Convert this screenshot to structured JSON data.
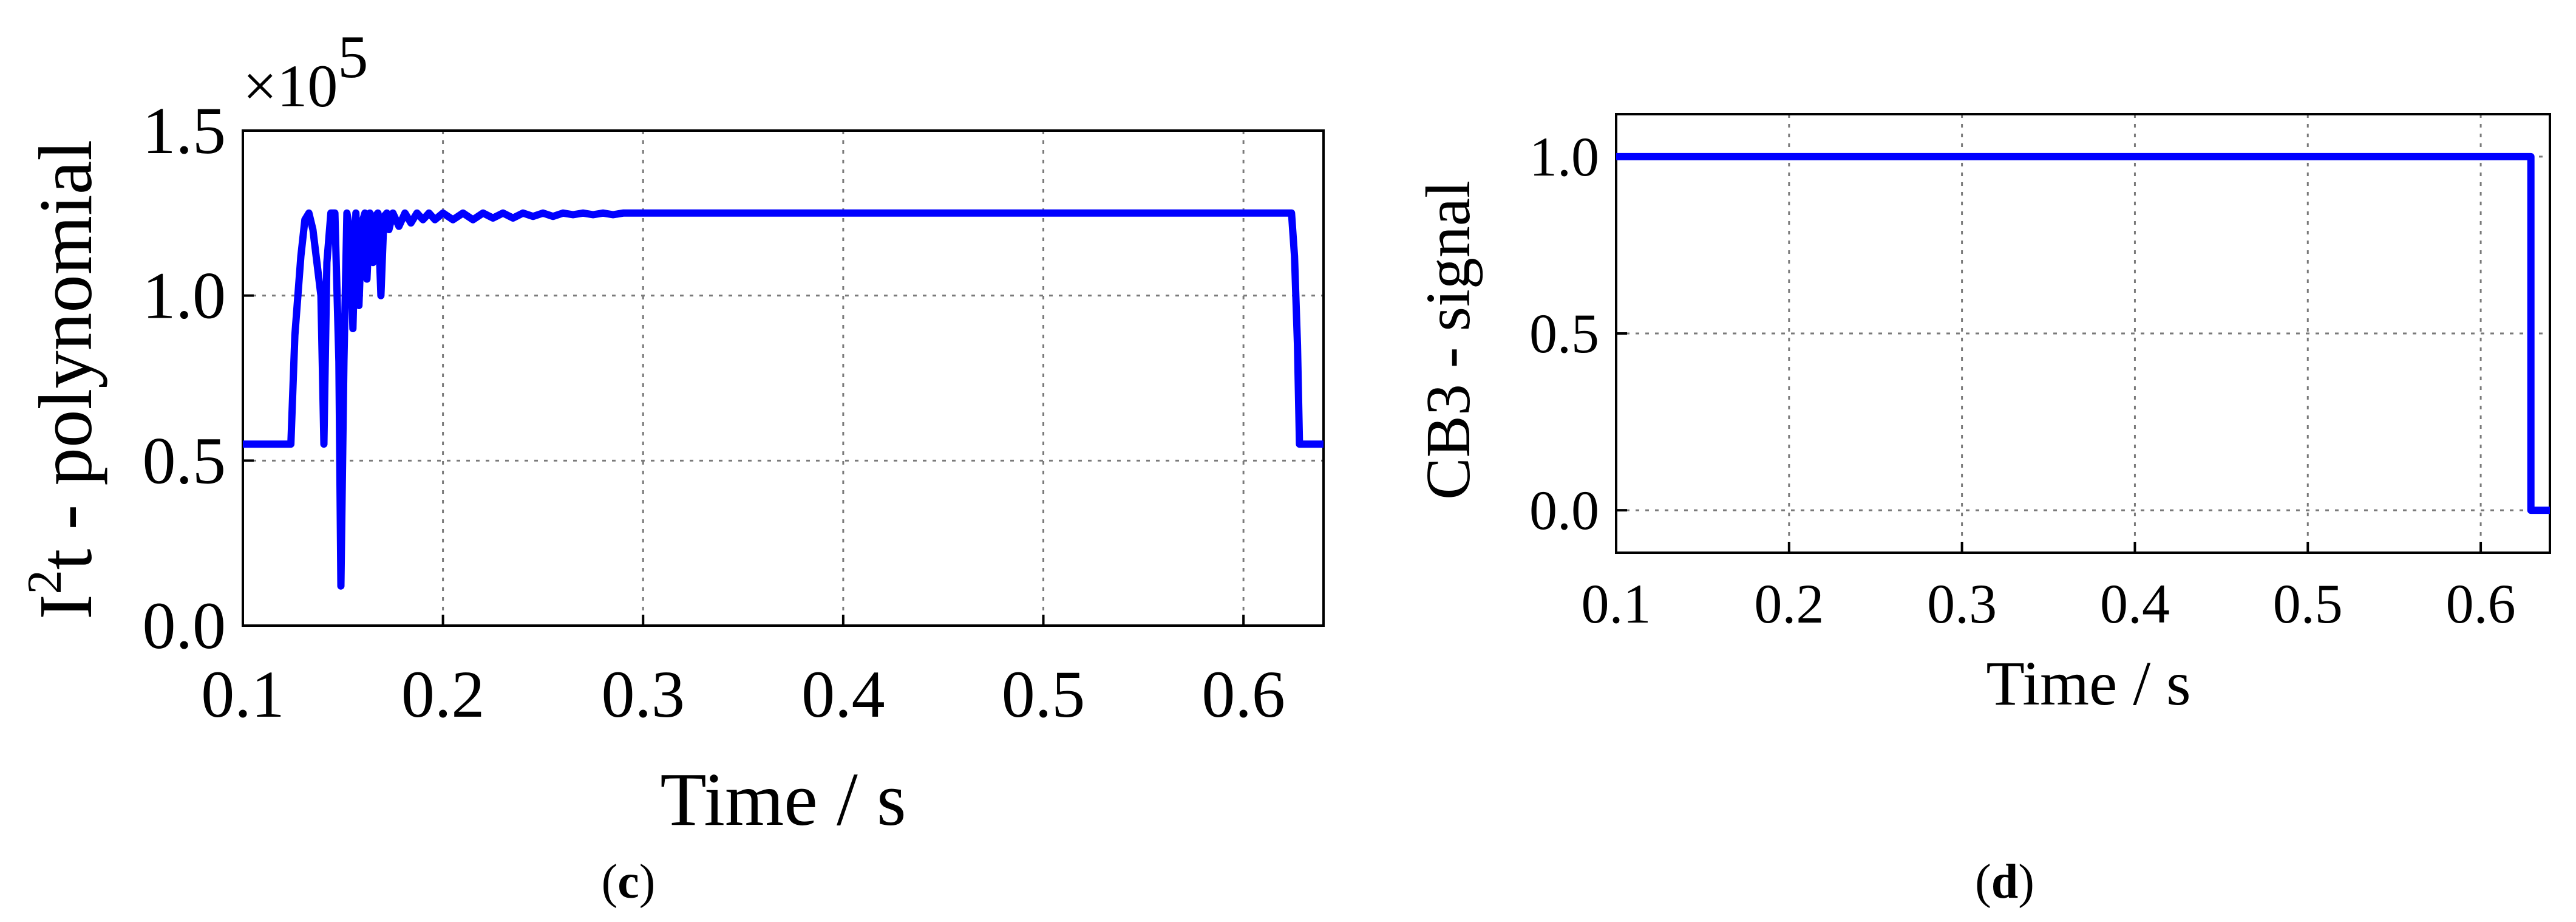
{
  "captions": {
    "left": "c",
    "right": "d"
  },
  "chart_data": [
    {
      "type": "line",
      "title": "",
      "xlabel": "Time / s",
      "ylabel_base": "I",
      "ylabel_sup": "2",
      "ylabel_rest": "t - polynomial",
      "y_multiplier_prefix": "×10",
      "y_multiplier_exp": "5",
      "xlim": [
        0.1,
        0.64
      ],
      "ylim": [
        0.0,
        1.5
      ],
      "grid": true,
      "x_ticks": [
        0.1,
        0.2,
        0.3,
        0.4,
        0.5,
        0.6
      ],
      "x_tick_labels": [
        "0.1",
        "0.2",
        "0.3",
        "0.4",
        "0.5",
        "0.6"
      ],
      "y_ticks": [
        0.0,
        0.5,
        1.0,
        1.5
      ],
      "y_tick_labels": [
        "0.0",
        "0.5",
        "1.0",
        "1.5"
      ],
      "series": [
        {
          "color": "#0000ff",
          "x": [
            0.1,
            0.124,
            0.126,
            0.129,
            0.131,
            0.133,
            0.135,
            0.137,
            0.139,
            0.1405,
            0.142,
            0.144,
            0.146,
            0.148,
            0.149,
            0.1505,
            0.152,
            0.1535,
            0.155,
            0.1565,
            0.158,
            0.1595,
            0.161,
            0.162,
            0.1635,
            0.165,
            0.166,
            0.1675,
            0.169,
            0.1705,
            0.172,
            0.173,
            0.175,
            0.178,
            0.181,
            0.184,
            0.187,
            0.19,
            0.193,
            0.196,
            0.2,
            0.205,
            0.21,
            0.215,
            0.22,
            0.225,
            0.23,
            0.235,
            0.24,
            0.245,
            0.25,
            0.255,
            0.26,
            0.265,
            0.27,
            0.275,
            0.28,
            0.285,
            0.29,
            0.3,
            0.35,
            0.4,
            0.45,
            0.5,
            0.55,
            0.6,
            0.624,
            0.6255,
            0.627,
            0.628,
            0.629,
            0.64
          ],
          "y": [
            0.55,
            0.55,
            0.88,
            1.12,
            1.23,
            1.25,
            1.2,
            1.1,
            1.0,
            0.55,
            1.1,
            1.25,
            1.25,
            0.8,
            0.12,
            0.8,
            1.25,
            1.2,
            0.9,
            1.25,
            0.97,
            1.22,
            1.25,
            1.05,
            1.25,
            1.1,
            1.24,
            1.25,
            1.0,
            1.24,
            1.25,
            1.2,
            1.25,
            1.21,
            1.25,
            1.22,
            1.25,
            1.23,
            1.25,
            1.23,
            1.25,
            1.23,
            1.25,
            1.23,
            1.25,
            1.235,
            1.25,
            1.235,
            1.25,
            1.24,
            1.25,
            1.24,
            1.25,
            1.245,
            1.25,
            1.245,
            1.25,
            1.245,
            1.25,
            1.25,
            1.25,
            1.25,
            1.25,
            1.25,
            1.25,
            1.25,
            1.25,
            1.12,
            0.85,
            0.55,
            0.55,
            0.55
          ]
        }
      ]
    },
    {
      "type": "line",
      "title": "",
      "xlabel": "Time / s",
      "ylabel": "CB3 - signal",
      "xlim": [
        0.1,
        0.64
      ],
      "ylim": [
        -0.12,
        1.12
      ],
      "grid": true,
      "x_ticks": [
        0.1,
        0.2,
        0.3,
        0.4,
        0.5,
        0.6
      ],
      "x_tick_labels": [
        "0.1",
        "0.2",
        "0.3",
        "0.4",
        "0.5",
        "0.6"
      ],
      "y_ticks": [
        0.0,
        0.5,
        1.0
      ],
      "y_tick_labels": [
        "0.0",
        "0.5",
        "1.0"
      ],
      "series": [
        {
          "color": "#0000ff",
          "x": [
            0.1,
            0.629,
            0.629,
            0.64
          ],
          "y": [
            1.0,
            1.0,
            0.0,
            0.0
          ]
        }
      ]
    }
  ]
}
